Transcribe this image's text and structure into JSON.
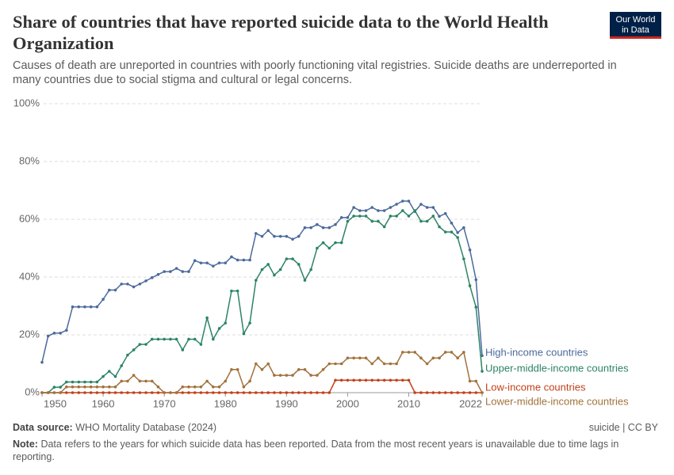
{
  "chart_data": {
    "type": "line",
    "title": "Share of countries that have reported suicide data to the World Health Organization",
    "subtitle": "Causes of death are unreported in countries with poorly functioning vital registries. Suicide deaths are underreported in many countries due to social stigma and cultural or legal concerns.",
    "logo": "Our World in Data",
    "source_label": "Data source:",
    "source": "WHO Mortality Database (2024)",
    "license": "suicide | CC BY",
    "note_label": "Note:",
    "note": "Data refers to the years for which suicide data has been reported. Data from the most recent years is unavailable due to time lags in reporting.",
    "x": [
      1950,
      1951,
      1952,
      1953,
      1954,
      1955,
      1956,
      1957,
      1958,
      1959,
      1960,
      1961,
      1962,
      1963,
      1964,
      1965,
      1966,
      1967,
      1968,
      1969,
      1970,
      1971,
      1972,
      1973,
      1974,
      1975,
      1976,
      1977,
      1978,
      1979,
      1980,
      1981,
      1982,
      1983,
      1984,
      1985,
      1986,
      1987,
      1988,
      1989,
      1990,
      1991,
      1992,
      1993,
      1994,
      1995,
      1996,
      1997,
      1998,
      1999,
      2000,
      2001,
      2002,
      2003,
      2004,
      2005,
      2006,
      2007,
      2008,
      2009,
      2010,
      2011,
      2012,
      2013,
      2014,
      2015,
      2016,
      2017,
      2018,
      2019,
      2020,
      2021,
      2022
    ],
    "xlim": [
      1950,
      2022
    ],
    "xticks": [
      1950,
      1960,
      1970,
      1980,
      1990,
      2000,
      2010,
      2022
    ],
    "ylim": [
      0,
      100
    ],
    "yticks": [
      {
        "value": 0,
        "label": "0%"
      },
      {
        "value": 20,
        "label": "20%"
      },
      {
        "value": 40,
        "label": "40%"
      },
      {
        "value": 60,
        "label": "60%"
      },
      {
        "value": 80,
        "label": "80%"
      },
      {
        "value": 100,
        "label": "100%"
      }
    ],
    "grid": true,
    "series": [
      {
        "name": "High-income countries",
        "color": "#4c6a9c",
        "values": [
          10.5,
          19.6,
          20.6,
          20.6,
          21.6,
          29.7,
          29.7,
          29.7,
          29.7,
          29.7,
          32.3,
          35.5,
          35.5,
          37.6,
          37.6,
          36.6,
          37.6,
          38.7,
          39.8,
          40.9,
          41.9,
          41.9,
          43.0,
          41.9,
          41.9,
          45.7,
          44.9,
          44.9,
          43.8,
          44.9,
          44.9,
          47.0,
          45.9,
          45.9,
          45.9,
          55.1,
          54.1,
          56.1,
          54.1,
          54.1,
          54.1,
          53.1,
          54.1,
          57.1,
          57.1,
          58.2,
          57.1,
          57.1,
          58.2,
          60.6,
          60.6,
          64.1,
          63.0,
          63.0,
          64.1,
          63.0,
          63.0,
          64.1,
          65.2,
          66.3,
          66.3,
          62.7,
          65.2,
          64.1,
          64.1,
          61.0,
          62.0,
          58.7,
          55.4,
          57.1,
          49.4,
          39.1,
          12.8
        ]
      },
      {
        "name": "Upper-middle-income countries",
        "color": "#2c8465",
        "values": [
          0,
          0,
          1.9,
          1.9,
          3.7,
          3.7,
          3.7,
          3.7,
          3.7,
          3.7,
          5.6,
          7.4,
          5.6,
          9.3,
          13.0,
          14.8,
          16.7,
          16.7,
          18.5,
          18.5,
          18.5,
          18.5,
          18.5,
          14.8,
          18.5,
          18.5,
          16.7,
          25.9,
          18.5,
          22.2,
          24.1,
          35.2,
          35.2,
          20.4,
          24.1,
          38.9,
          42.6,
          44.4,
          40.7,
          42.6,
          46.3,
          46.3,
          44.4,
          38.9,
          42.6,
          50.0,
          51.9,
          50.0,
          51.9,
          51.9,
          59.3,
          61.1,
          61.1,
          61.1,
          59.3,
          59.3,
          57.4,
          61.1,
          61.1,
          63.0,
          61.1,
          63.0,
          59.3,
          59.3,
          61.1,
          57.4,
          55.6,
          55.6,
          53.7,
          46.3,
          37.0,
          29.6,
          7.4
        ]
      },
      {
        "name": "Low-income countries",
        "color": "#c0411a",
        "values": [
          0,
          0,
          0,
          0,
          0,
          0,
          0,
          0,
          0,
          0,
          0,
          0,
          0,
          0,
          0,
          0,
          0,
          0,
          0,
          0,
          0,
          0,
          0,
          0,
          0,
          0,
          0,
          0,
          0,
          0,
          0,
          0,
          0,
          0,
          0,
          0,
          0,
          0,
          0,
          0,
          0,
          0,
          0,
          0,
          0,
          0,
          0,
          0,
          4.3,
          4.3,
          4.3,
          4.3,
          4.3,
          4.3,
          4.3,
          4.3,
          4.3,
          4.3,
          4.3,
          4.3,
          4.3,
          0,
          0,
          0,
          0,
          0,
          0,
          0,
          0,
          0,
          0,
          0,
          0
        ]
      },
      {
        "name": "Lower-middle-income countries",
        "color": "#a2723c",
        "values": [
          0,
          0,
          0,
          0,
          2,
          2,
          2,
          2,
          2,
          2,
          2,
          2,
          2,
          4,
          4,
          6,
          4,
          4,
          4,
          2,
          0,
          0,
          0,
          2,
          2,
          2,
          2,
          4,
          2,
          2,
          4,
          8,
          8,
          2,
          4,
          10,
          8,
          10,
          6,
          6,
          6,
          6,
          8,
          8,
          6,
          6,
          8,
          10,
          10,
          10,
          12,
          12,
          12,
          12,
          10,
          12,
          10,
          10,
          10,
          14,
          14,
          14,
          12,
          10,
          12,
          12,
          14,
          14,
          12,
          14,
          4,
          4,
          0
        ]
      }
    ]
  }
}
